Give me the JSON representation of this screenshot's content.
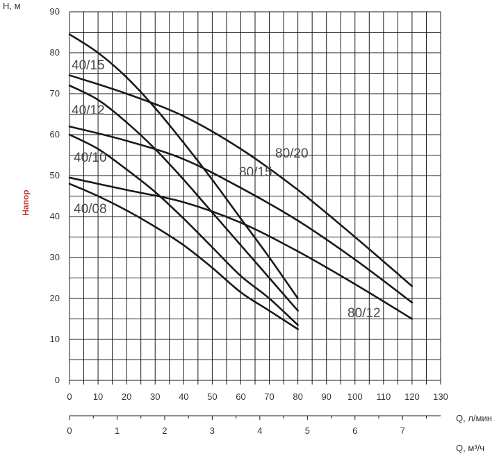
{
  "chart_data": {
    "type": "line",
    "ylabel": "Напор",
    "yaxis_unit": "H, м",
    "xlabel": "Q, л/мин",
    "x2label": "Q, м³/ч",
    "xlim": [
      0,
      130
    ],
    "ylim": [
      0,
      90
    ],
    "x2lim": [
      0,
      7.8
    ],
    "x_ticks": [
      0,
      10,
      20,
      30,
      40,
      50,
      60,
      70,
      80,
      90,
      100,
      110,
      120,
      130
    ],
    "y_ticks": [
      0,
      10,
      20,
      30,
      40,
      50,
      60,
      70,
      80,
      90
    ],
    "x2_ticks": [
      0,
      1,
      2,
      3,
      4,
      5,
      6,
      7
    ],
    "grid": true,
    "colors": {
      "curve": "#1a1a1a",
      "grid": "#1a1a1a",
      "ylabel": "#c0392b",
      "text": "#333333"
    },
    "series": [
      {
        "name": "40/15",
        "x": [
          0,
          10,
          20,
          30,
          40,
          50,
          60,
          70,
          80
        ],
        "y": [
          84.5,
          80,
          74,
          66.5,
          58,
          49,
          39.5,
          30,
          20
        ]
      },
      {
        "name": "40/12",
        "x": [
          0,
          10,
          20,
          30,
          40,
          50,
          60,
          70,
          80
        ],
        "y": [
          72,
          68.5,
          63,
          56.5,
          49,
          41,
          33,
          25,
          17
        ]
      },
      {
        "name": "40/10",
        "x": [
          0,
          10,
          20,
          30,
          40,
          50,
          60,
          70,
          80
        ],
        "y": [
          60,
          56.5,
          51.5,
          46,
          39.5,
          32.5,
          25.5,
          20,
          13.5
        ]
      },
      {
        "name": "40/08",
        "x": [
          0,
          10,
          20,
          30,
          40,
          50,
          60,
          70,
          80
        ],
        "y": [
          48,
          45,
          41.5,
          37.5,
          33,
          27.5,
          21.5,
          17,
          12.5
        ]
      },
      {
        "name": "80/20",
        "x": [
          0,
          20,
          40,
          60,
          80,
          100,
          120
        ],
        "y": [
          74.5,
          70,
          64.5,
          56.5,
          46.5,
          35,
          23
        ]
      },
      {
        "name": "80/15",
        "x": [
          0,
          20,
          40,
          60,
          80,
          100,
          120
        ],
        "y": [
          62,
          58.5,
          54,
          47,
          39,
          29.5,
          19
        ]
      },
      {
        "name": "80/12",
        "x": [
          0,
          20,
          40,
          60,
          80,
          100,
          120
        ],
        "y": [
          49.5,
          46.5,
          43.5,
          38.5,
          31.5,
          23.5,
          15
        ]
      }
    ]
  }
}
